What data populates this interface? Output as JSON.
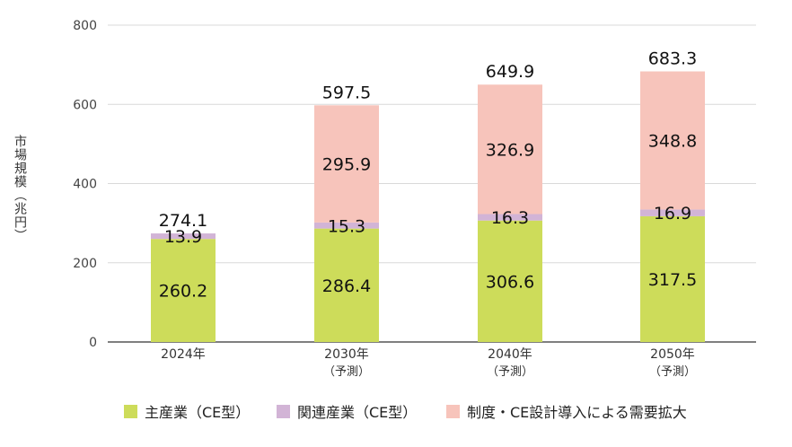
{
  "y_axis_title": "市場規模（兆円）",
  "legend": [
    {
      "label": "主産業（CE型）",
      "color": "#cddc5a"
    },
    {
      "label": "関連産業（CE型）",
      "color": "#d2b4d6"
    },
    {
      "label": "制度・CE設計導入による需要拡大",
      "color": "#f7c4bb"
    }
  ],
  "chart_data": {
    "type": "bar",
    "stacked": true,
    "categories": [
      "2024年",
      "2030年",
      "2040年",
      "2050年"
    ],
    "category_sublabels": [
      "",
      "（予測）",
      "（予測）",
      "（予測）"
    ],
    "series": [
      {
        "name": "主産業（CE型）",
        "values": [
          260.2,
          286.4,
          306.6,
          317.5
        ],
        "color": "#cddc5a"
      },
      {
        "name": "関連産業（CE型）",
        "values": [
          13.9,
          15.3,
          16.3,
          16.9
        ],
        "color": "#d2b4d6"
      },
      {
        "name": "制度・CE設計導入による需要拡大",
        "values": [
          0,
          295.9,
          326.9,
          348.8
        ],
        "color": "#f7c4bb"
      }
    ],
    "totals": [
      274.1,
      597.5,
      649.9,
      683.3
    ],
    "ylim": [
      0,
      800
    ],
    "yticks": [
      0,
      200,
      400,
      600,
      800
    ],
    "grid": true,
    "legend_position": "bottom"
  }
}
